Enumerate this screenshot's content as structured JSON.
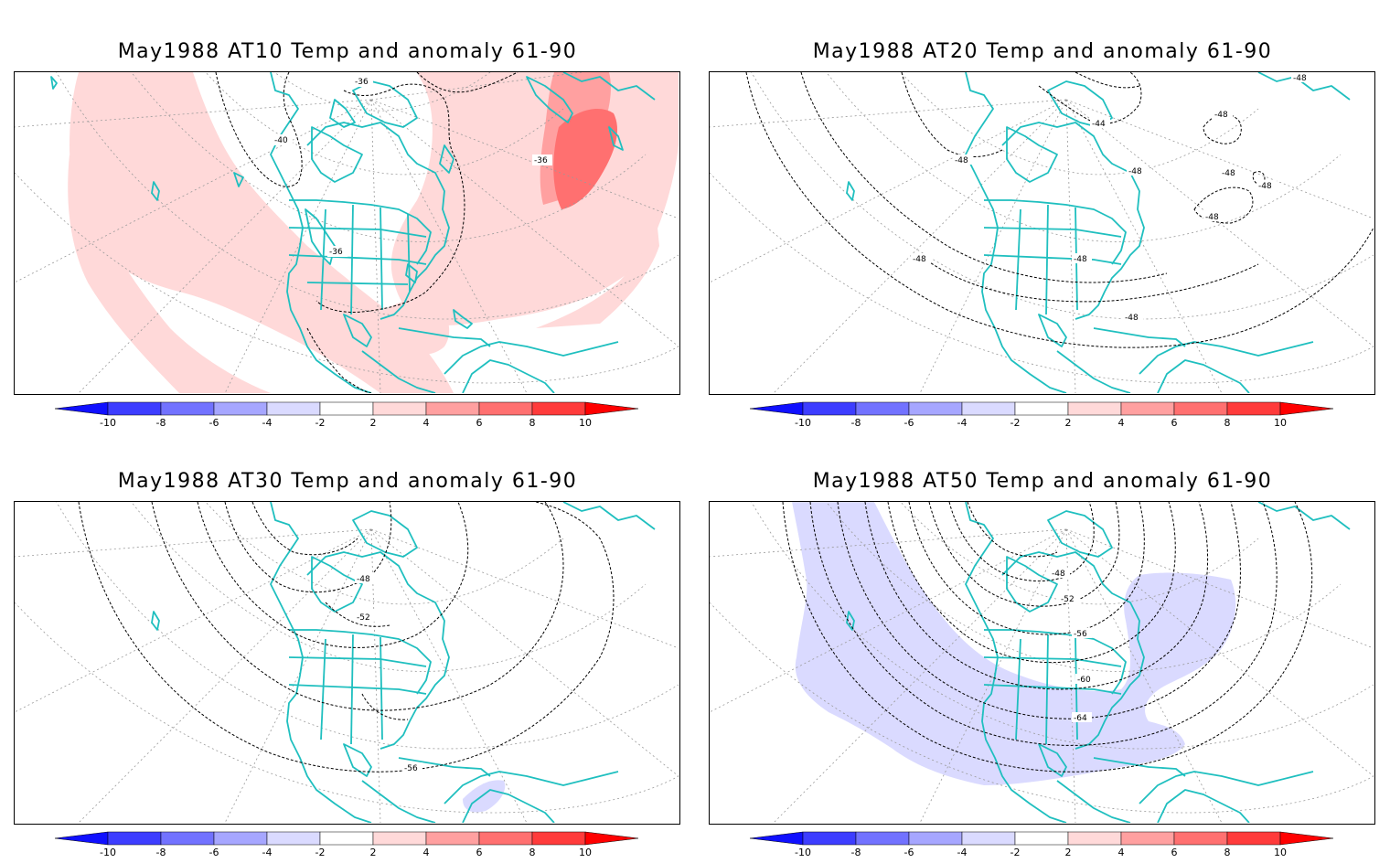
{
  "colors": {
    "coast": "#1fbfbf",
    "grid": "#9a9a9a",
    "contour": "#000000",
    "anom_pos_1": "#ffd9d9",
    "anom_pos_2": "#ffa0a0",
    "anom_pos_3": "#ff7070",
    "anom_pos_4": "#ff3b3b",
    "anom_pos_5": "#ff0000",
    "anom_neg_1": "#dadaff",
    "anom_neg_2": "#a6a6ff",
    "anom_neg_3": "#7272ff",
    "anom_neg_4": "#3d3dff",
    "anom_neg_5": "#1010ff"
  },
  "colorbar": {
    "tick_labels": [
      "-10",
      "-8",
      "-6",
      "-4",
      "-2",
      "2",
      "4",
      "6",
      "8",
      "10"
    ]
  },
  "panels": [
    {
      "title": "May1988 AT10 Temp and anomaly 61-90",
      "contour_labels": [
        "-36",
        "-40",
        "-36",
        "-36"
      ]
    },
    {
      "title": "May1988 AT20 Temp and anomaly 61-90",
      "contour_labels": [
        "-48",
        "-44",
        "-48",
        "-48",
        "-48",
        "-48",
        "-48",
        "-48",
        "-48",
        "-48",
        "-48"
      ]
    },
    {
      "title": "May1988 AT30 Temp and anomaly 61-90",
      "contour_labels": [
        "-48",
        "-52",
        "-56"
      ]
    },
    {
      "title": "May1988 AT50 Temp and anomaly 61-90",
      "contour_labels": [
        "-48",
        "-52",
        "-56",
        "-60",
        "-64"
      ]
    }
  ]
}
